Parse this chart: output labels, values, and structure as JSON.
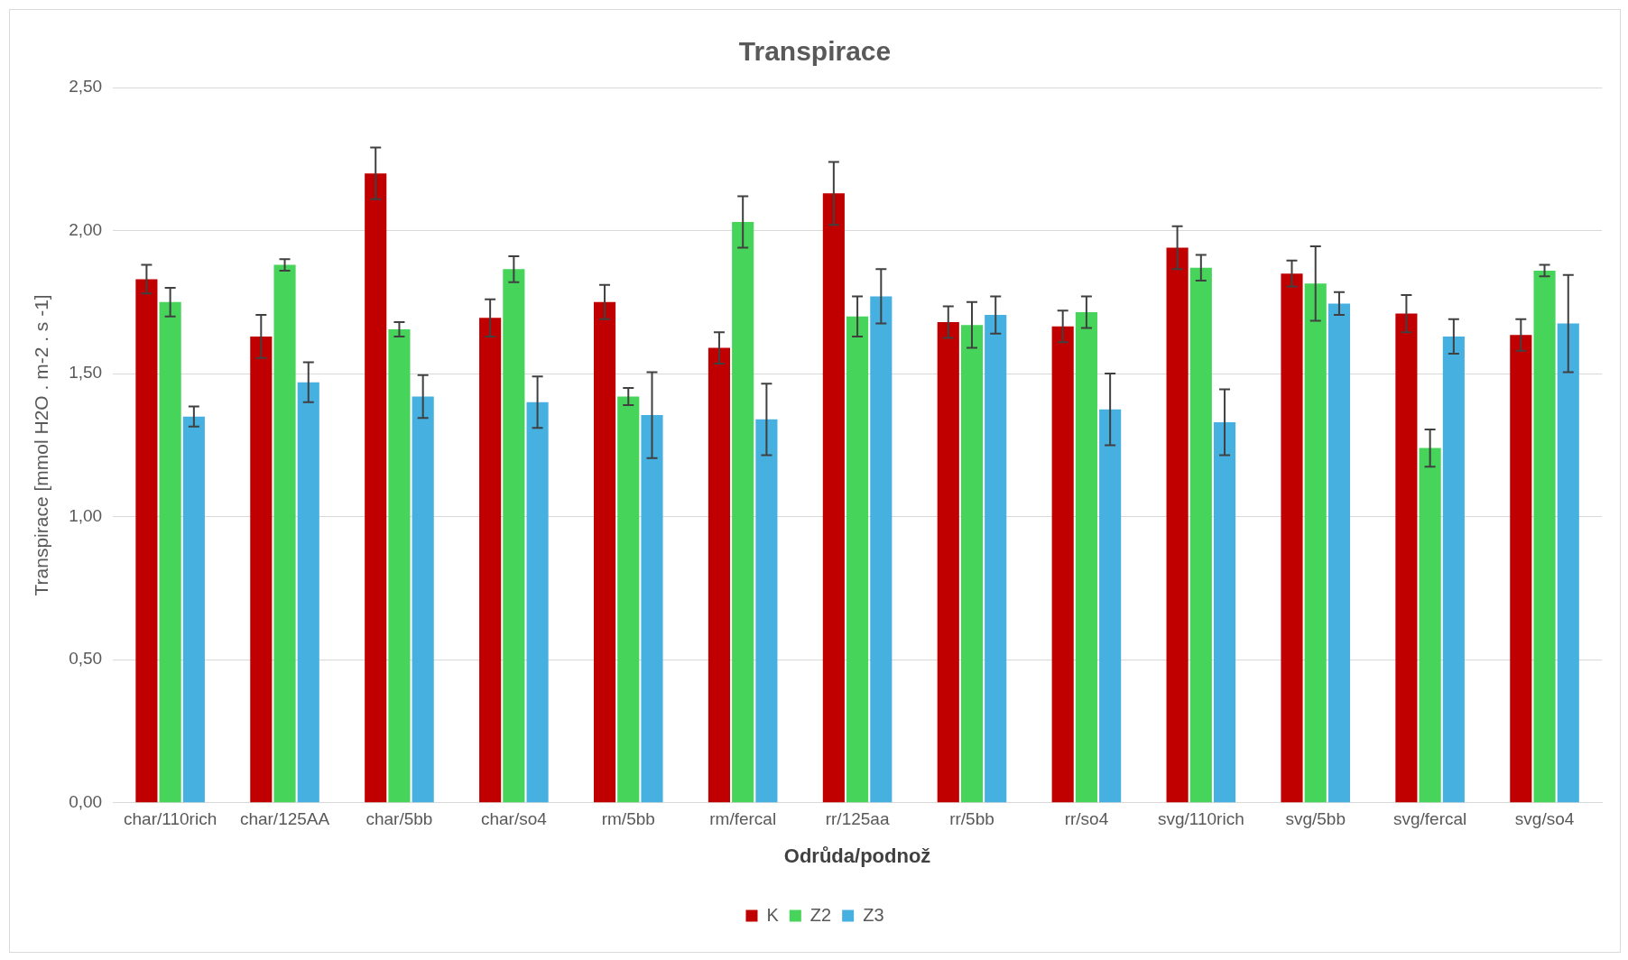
{
  "chart_data": {
    "type": "bar",
    "title": "Transpirace",
    "xlabel": "Odrůda/podnož",
    "ylabel": "Transpirace [mmol H2O . m-2 . s -1]",
    "categories": [
      "char/110rich",
      "char/125AA",
      "char/5bb",
      "char/so4",
      "rm/5bb",
      "rm/fercal",
      "rr/125aa",
      "rr/5bb",
      "rr/so4",
      "svg/110rich",
      "svg/5bb",
      "svg/fercal",
      "svg/so4"
    ],
    "series": [
      {
        "name": "K",
        "color": "#c00000",
        "values": [
          1.83,
          1.63,
          2.2,
          1.695,
          1.75,
          1.59,
          2.13,
          1.68,
          1.665,
          1.94,
          1.85,
          1.71,
          1.635
        ],
        "errors": [
          0.05,
          0.075,
          0.09,
          0.065,
          0.06,
          0.055,
          0.11,
          0.055,
          0.055,
          0.075,
          0.045,
          0.065,
          0.055
        ]
      },
      {
        "name": "Z2",
        "color": "#46d45a",
        "values": [
          1.75,
          1.88,
          1.655,
          1.865,
          1.42,
          2.03,
          1.7,
          1.67,
          1.715,
          1.87,
          1.815,
          1.24,
          1.86
        ],
        "errors": [
          0.05,
          0.02,
          0.025,
          0.045,
          0.03,
          0.09,
          0.07,
          0.08,
          0.055,
          0.045,
          0.13,
          0.065,
          0.02
        ]
      },
      {
        "name": "Z3",
        "color": "#46b0e0",
        "values": [
          1.35,
          1.47,
          1.42,
          1.4,
          1.355,
          1.34,
          1.77,
          1.705,
          1.375,
          1.33,
          1.745,
          1.63,
          1.675
        ],
        "errors": [
          0.035,
          0.07,
          0.075,
          0.09,
          0.15,
          0.125,
          0.095,
          0.065,
          0.125,
          0.115,
          0.04,
          0.06,
          0.17
        ]
      }
    ],
    "ylim": [
      0,
      2.5
    ],
    "yticks": [
      {
        "value": 0,
        "label": "0,00"
      },
      {
        "value": 0.5,
        "label": "0,50"
      },
      {
        "value": 1,
        "label": "1,00"
      },
      {
        "value": 1.5,
        "label": "1,50"
      },
      {
        "value": 2,
        "label": "2,00"
      },
      {
        "value": 2.5,
        "label": "2,50"
      }
    ],
    "grid": "y",
    "legend": "bottom"
  }
}
